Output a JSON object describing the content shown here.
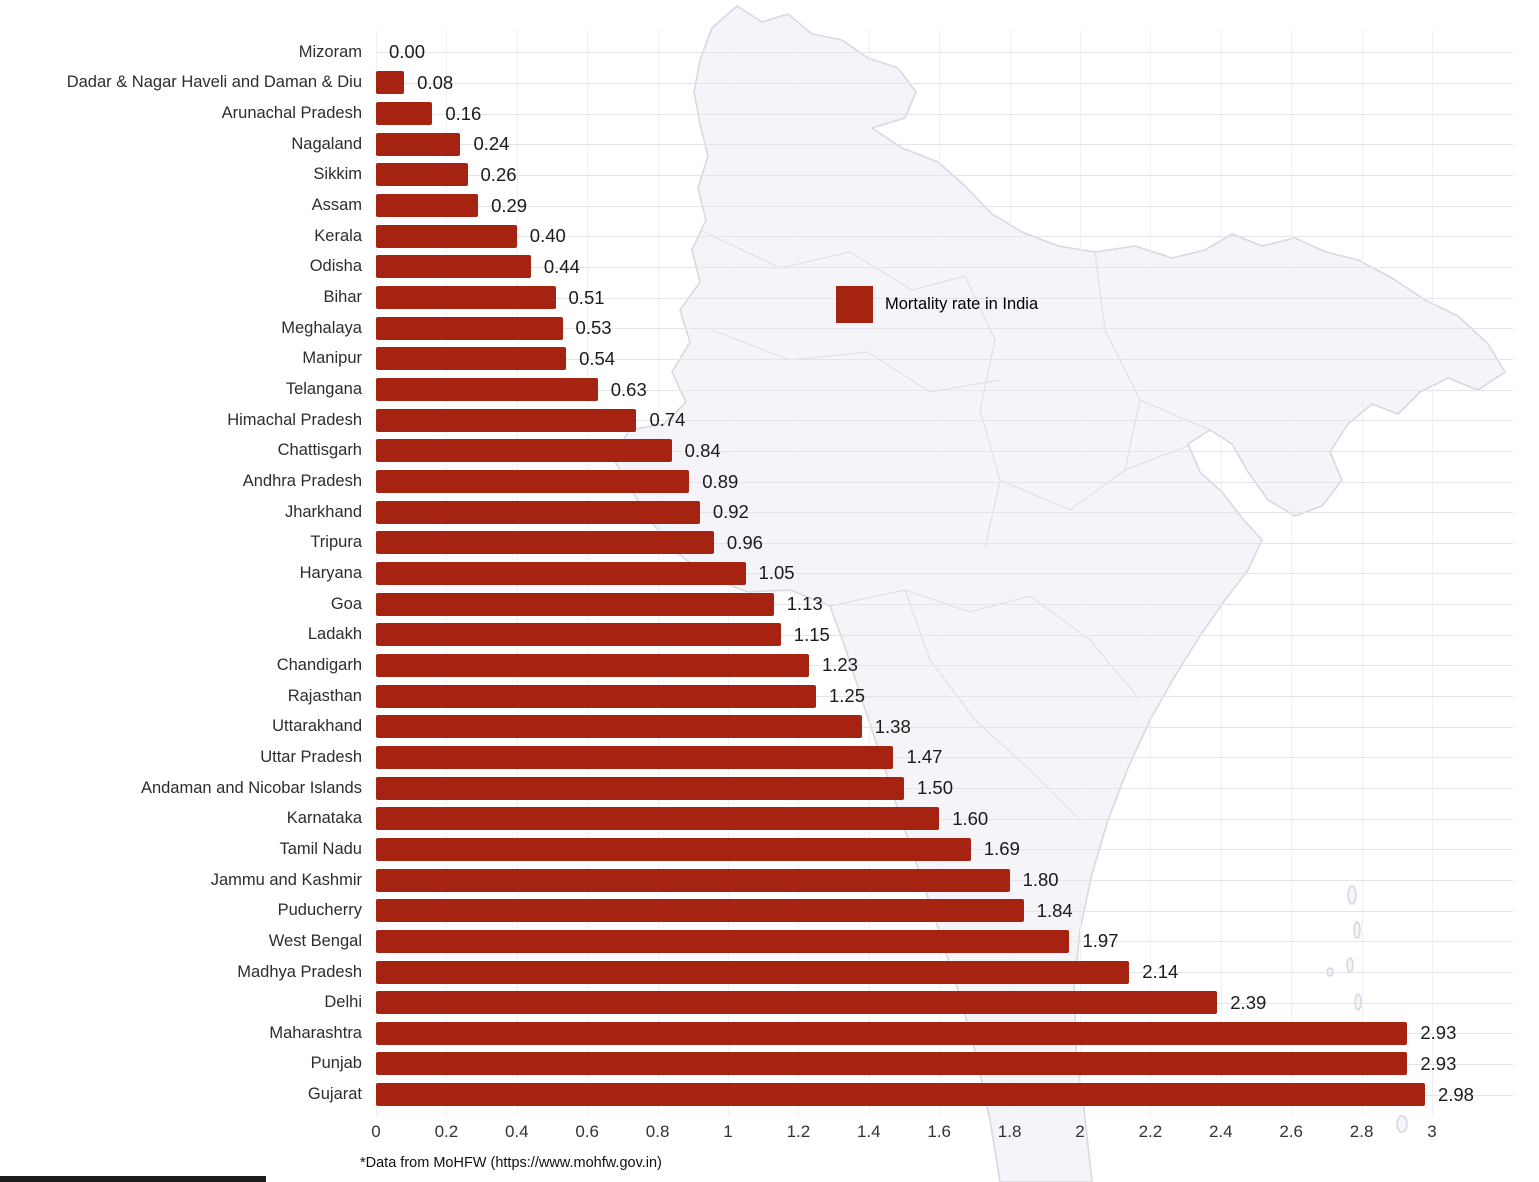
{
  "chart_data": {
    "type": "bar",
    "orientation": "horizontal",
    "legend_label": "Mortality rate in India",
    "footnote": "*Data from MoHFW (https://www.mohfw.gov.in)",
    "bar_color": "#a52310",
    "xlim": [
      0,
      3
    ],
    "x_ticks": [
      "0",
      "0.2",
      "0.4",
      "0.6",
      "0.8",
      "1",
      "1.2",
      "1.4",
      "1.6",
      "1.8",
      "2",
      "2.2",
      "2.4",
      "2.6",
      "2.8",
      "3"
    ],
    "grid": true,
    "legend_position": "center-right",
    "categories": [
      "Mizoram",
      "Dadar & Nagar Haveli and Daman & Diu",
      "Arunachal Pradesh",
      "Nagaland",
      "Sikkim",
      "Assam",
      "Kerala",
      "Odisha",
      "Bihar",
      "Meghalaya",
      "Manipur",
      "Telangana",
      "Himachal Pradesh",
      "Chattisgarh",
      "Andhra Pradesh",
      "Jharkhand",
      "Tripura",
      "Haryana",
      "Goa",
      "Ladakh",
      "Chandigarh",
      "Rajasthan",
      "Uttarakhand",
      "Uttar Pradesh",
      "Andaman and Nicobar Islands",
      "Karnataka",
      "Tamil Nadu",
      "Jammu and Kashmir",
      "Puducherry",
      "West Bengal",
      "Madhya Pradesh",
      "Delhi",
      "Maharashtra",
      "Punjab",
      "Gujarat"
    ],
    "values": [
      0.0,
      0.08,
      0.16,
      0.24,
      0.26,
      0.29,
      0.4,
      0.44,
      0.51,
      0.53,
      0.54,
      0.63,
      0.74,
      0.84,
      0.89,
      0.92,
      0.96,
      1.05,
      1.13,
      1.15,
      1.23,
      1.25,
      1.38,
      1.47,
      1.5,
      1.6,
      1.69,
      1.8,
      1.84,
      1.97,
      2.14,
      2.39,
      2.93,
      2.93,
      2.98
    ],
    "value_labels": [
      "0.00",
      "0.08",
      "0.16",
      "0.24",
      "0.26",
      "0.29",
      "0.40",
      "0.44",
      "0.51",
      "0.53",
      "0.54",
      "0.63",
      "0.74",
      "0.84",
      "0.89",
      "0.92",
      "0.96",
      "1.05",
      "1.13",
      "1.15",
      "1.23",
      "1.25",
      "1.38",
      "1.47",
      "1.50",
      "1.60",
      "1.69",
      "1.80",
      "1.84",
      "1.97",
      "2.14",
      "2.39",
      "2.93",
      "2.93",
      "2.98"
    ]
  },
  "legend": {
    "label": "Mortality rate in India"
  },
  "footnote": "*Data from MoHFW (https://www.mohfw.gov.in)"
}
